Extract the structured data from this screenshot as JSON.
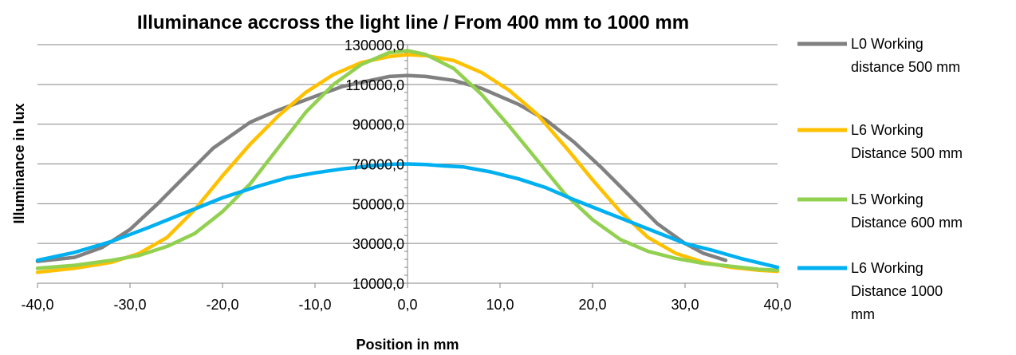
{
  "chart_data": {
    "type": "line",
    "title": "Illuminance accross the light line / From 400 mm to 1000 mm",
    "xlabel": "Position in mm",
    "ylabel": "Illuminance in lux",
    "xlim": [
      -40,
      40
    ],
    "ylim": [
      10000,
      130000
    ],
    "x_ticks": [
      -40,
      -30,
      -20,
      -10,
      0,
      10,
      20,
      30,
      40
    ],
    "x_tick_labels": [
      "-40,0",
      "-30,0",
      "-20,0",
      "-10,0",
      "0,0",
      "10,0",
      "20,0",
      "30,0",
      "40,0"
    ],
    "y_ticks": [
      10000,
      30000,
      50000,
      70000,
      90000,
      110000,
      130000
    ],
    "y_tick_labels": [
      "10000,0",
      "30000,0",
      "50000,0",
      "70000,0",
      "90000,0",
      "110000,0",
      "130000,0"
    ],
    "grid": true,
    "legend_position": "right",
    "series": [
      {
        "name": "L0 Working distance 500 mm",
        "legend_lines": [
          "L0 Working",
          "distance 500 mm"
        ],
        "color": "#808080",
        "x": [
          -40,
          -36,
          -33,
          -30,
          -27,
          -24,
          -21,
          -17,
          -14,
          -10,
          -7,
          -4,
          -2,
          0,
          2,
          5,
          8,
          12,
          15,
          18,
          21,
          24,
          27,
          30,
          32,
          34.4
        ],
        "y": [
          21000,
          23000,
          28000,
          37000,
          50000,
          64000,
          78000,
          91000,
          97000,
          104000,
          109000,
          112000,
          114000,
          114500,
          114000,
          112000,
          108000,
          100000,
          92000,
          81000,
          68000,
          54000,
          40000,
          30000,
          25000,
          21500
        ]
      },
      {
        "name": "L6 Working Distance 500 mm",
        "legend_lines": [
          "L6 Working",
          "Distance 500 mm"
        ],
        "color": "#ffc000",
        "x": [
          -40,
          -36,
          -32,
          -29,
          -26,
          -23,
          -20,
          -17,
          -14,
          -11,
          -8,
          -5,
          -2,
          0,
          2,
          5,
          8,
          11,
          14,
          17,
          20,
          23,
          26,
          29,
          32,
          35,
          38,
          40
        ],
        "y": [
          15500,
          17500,
          20500,
          25000,
          33000,
          47000,
          64000,
          80000,
          94000,
          106000,
          115000,
          121000,
          124000,
          125000,
          124500,
          122000,
          116000,
          107000,
          95000,
          79000,
          62000,
          46000,
          33000,
          25000,
          20500,
          18000,
          16500,
          16000
        ]
      },
      {
        "name": "L5 Working Distance 600 mm",
        "legend_lines": [
          "L5 Working",
          "Distance 600 mm"
        ],
        "color": "#92d050",
        "x": [
          -40,
          -36,
          -32,
          -29,
          -26,
          -23,
          -20,
          -17,
          -14,
          -11,
          -8,
          -5,
          -2,
          0,
          2,
          5,
          8,
          11,
          14,
          17,
          20,
          23,
          26,
          29,
          32,
          35,
          38,
          40
        ],
        "y": [
          17500,
          19000,
          21500,
          24000,
          28500,
          35000,
          46000,
          60000,
          78000,
          96000,
          110000,
          120000,
          126000,
          127000,
          125000,
          118000,
          105000,
          89000,
          72000,
          55000,
          42000,
          32000,
          26000,
          22500,
          20000,
          18500,
          17000,
          16500
        ]
      },
      {
        "name": "L6 Working Distance 1000 mm",
        "legend_lines": [
          "L6 Working",
          "Distance 1000",
          "mm"
        ],
        "color": "#00b0f0",
        "x": [
          -40,
          -36,
          -32,
          -28,
          -24,
          -20,
          -16,
          -13,
          -10,
          -7,
          -4,
          -2,
          0,
          2,
          4,
          6,
          9,
          12,
          15,
          18,
          21,
          24,
          27,
          30,
          33,
          36,
          40
        ],
        "y": [
          21500,
          25500,
          31000,
          38000,
          45500,
          53000,
          59000,
          63000,
          65500,
          67500,
          69000,
          69800,
          70000,
          69700,
          69000,
          68500,
          66000,
          62500,
          58000,
          52000,
          46500,
          41000,
          35500,
          30000,
          26500,
          22500,
          18000
        ]
      }
    ]
  }
}
